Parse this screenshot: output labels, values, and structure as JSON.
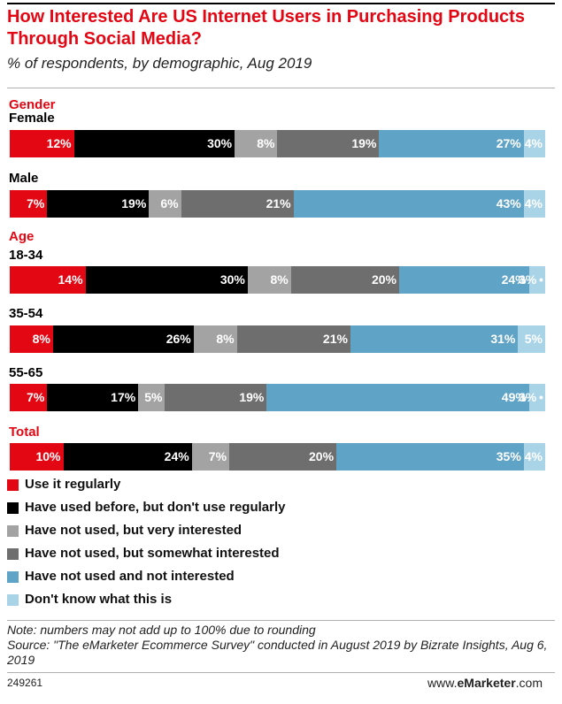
{
  "header": {
    "title": "How Interested Are US Internet Users in Purchasing Products Through Social Media?",
    "subtitle": "% of respondents, by demographic, Aug 2019"
  },
  "colors": {
    "use_regularly": "#e30613",
    "used_before": "#000000",
    "very_interested": "#a3a3a3",
    "somewhat_interested": "#6e6e6e",
    "not_interested": "#5fa3c7",
    "dont_know": "#a9d3e6"
  },
  "chart_data": {
    "type": "bar",
    "orientation": "horizontal",
    "stacked": true,
    "title": "How Interested Are US Internet Users in Purchasing Products Through Social Media?",
    "subtitle": "% of respondents, by demographic, Aug 2019",
    "series": [
      {
        "name": "Use it regularly",
        "color": "#e30613"
      },
      {
        "name": "Have used before, but don't use regularly",
        "color": "#000000"
      },
      {
        "name": "Have not used, but very interested",
        "color": "#a3a3a3"
      },
      {
        "name": "Have not used, but somewhat interested",
        "color": "#6e6e6e"
      },
      {
        "name": "Have not used and not interested",
        "color": "#5fa3c7"
      },
      {
        "name": "Don't know what this is",
        "color": "#a9d3e6"
      }
    ],
    "groups": [
      {
        "label": "Gender",
        "rows": [
          {
            "label": "Female",
            "values": [
              12,
              30,
              8,
              19,
              27,
              4
            ]
          },
          {
            "label": "Male",
            "values": [
              7,
              19,
              6,
              21,
              43,
              4
            ]
          }
        ]
      },
      {
        "label": "Age",
        "rows": [
          {
            "label": "18-34",
            "values": [
              14,
              30,
              8,
              20,
              24,
              3
            ]
          },
          {
            "label": "35-54",
            "values": [
              8,
              26,
              8,
              21,
              31,
              5
            ]
          },
          {
            "label": "55-65",
            "values": [
              7,
              17,
              5,
              19,
              49,
              3
            ]
          }
        ]
      },
      {
        "label": "Total",
        "rows": [
          {
            "label": "",
            "values": [
              10,
              24,
              7,
              20,
              35,
              4
            ]
          }
        ]
      }
    ],
    "legend_position": "bottom-left"
  },
  "legend": [
    "Use it regularly",
    "Have used before, but don't use regularly",
    "Have not used, but very interested",
    "Have not used, but somewhat interested",
    "Have not used and not interested",
    "Don't know what this is"
  ],
  "footer": {
    "note": "Note: numbers may not add up to 100% due to rounding",
    "source": "Source: \"The eMarketer Ecommerce Survey\" conducted in August 2019 by Bizrate Insights, Aug 6, 2019",
    "chart_id": "249261",
    "brand_prefix": "www.",
    "brand_name": "eMarketer",
    "brand_suffix": ".com"
  }
}
